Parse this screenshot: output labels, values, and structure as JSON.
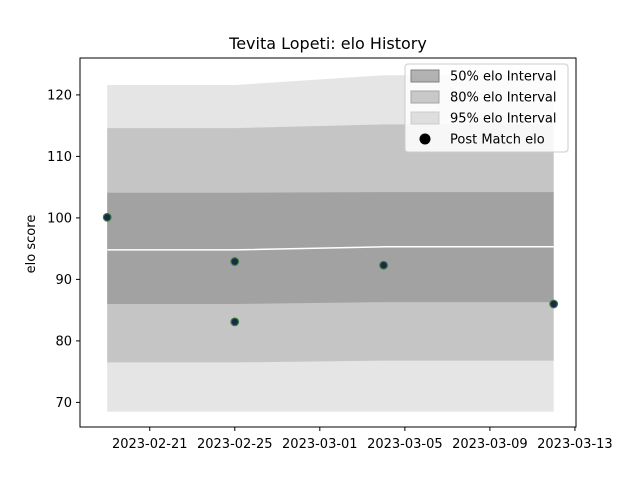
{
  "chart_data": {
    "type": "line",
    "title": "Tevita Lopeti: elo History",
    "xlabel": "",
    "ylabel": "elo score",
    "x": [
      "2023-02-19",
      "2023-02-25",
      "2023-03-04",
      "2023-03-12"
    ],
    "xlim": [
      "2023-02-18",
      "2023-03-13"
    ],
    "ylim": [
      66,
      126
    ],
    "xticks": [
      "2023-02-21",
      "2023-02-25",
      "2023-03-01",
      "2023-03-05",
      "2023-03-09",
      "2023-03-13"
    ],
    "yticks": [
      70,
      80,
      90,
      100,
      110,
      120
    ],
    "grid": false,
    "legend_position": "top-right",
    "series": [
      {
        "key": "mean",
        "values": [
          94.8,
          94.8,
          95.3,
          95.3
        ],
        "color": "#ffffff"
      },
      {
        "key": "band_50",
        "name": "50% elo Interval",
        "lower": [
          86.0,
          86.0,
          86.3,
          86.3
        ],
        "upper": [
          104.1,
          104.1,
          104.2,
          104.2
        ],
        "color": "#808080"
      },
      {
        "key": "band_80",
        "name": "80% elo Interval",
        "lower": [
          76.5,
          76.5,
          76.8,
          76.8
        ],
        "upper": [
          114.6,
          114.6,
          115.2,
          115.2
        ],
        "color": "#a6a6a6"
      },
      {
        "key": "band_95",
        "name": "95% elo Interval",
        "lower": [
          68.5,
          68.5,
          68.5,
          68.5
        ],
        "upper": [
          121.6,
          121.6,
          123.2,
          123.2
        ],
        "color": "#cccccc"
      }
    ],
    "points": {
      "name": "Post Match elo",
      "x": [
        "2023-02-19",
        "2023-02-25",
        "2023-02-25",
        "2023-03-04",
        "2023-03-12"
      ],
      "y": [
        100.1,
        92.9,
        83.1,
        92.3,
        86.0
      ],
      "color": "#1a2a4a",
      "edge_color": "#3c7a3c"
    }
  }
}
